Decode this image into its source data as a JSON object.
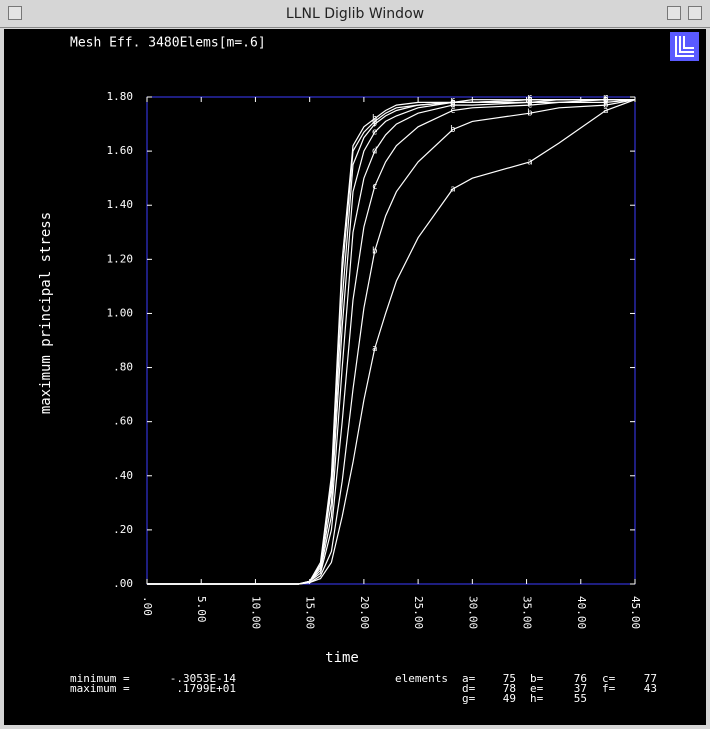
{
  "window_title": "LLNL Diglib Window",
  "chart_data": {
    "type": "line",
    "title": "Mesh Eff. 3480Elems[m=.6]",
    "x_label": "time",
    "y_label": "maximum principal stress",
    "x": [
      0,
      14,
      15,
      16,
      17,
      18,
      19,
      20,
      21,
      22,
      23,
      25,
      28.2,
      30,
      35.3,
      38,
      42.3,
      45
    ],
    "series": [
      {
        "name": "a",
        "color": "#ffffff",
        "values": [
          0,
          0,
          0.005,
          0.02,
          0.08,
          0.25,
          0.45,
          0.68,
          0.87,
          1.0,
          1.12,
          1.28,
          1.46,
          1.5,
          1.56,
          1.63,
          1.75,
          1.79
        ]
      },
      {
        "name": "b",
        "color": "#ffffff",
        "values": [
          0,
          0,
          0.005,
          0.03,
          0.12,
          0.38,
          0.72,
          1.02,
          1.23,
          1.36,
          1.45,
          1.56,
          1.68,
          1.71,
          1.74,
          1.76,
          1.77,
          1.79
        ]
      },
      {
        "name": "c",
        "color": "#ffffff",
        "values": [
          0,
          0,
          0.01,
          0.04,
          0.2,
          0.6,
          1.05,
          1.32,
          1.47,
          1.56,
          1.62,
          1.69,
          1.75,
          1.76,
          1.77,
          1.78,
          1.78,
          1.79
        ]
      },
      {
        "name": "d",
        "color": "#ffffff",
        "values": [
          0,
          0,
          0.01,
          0.05,
          0.25,
          0.8,
          1.3,
          1.5,
          1.6,
          1.66,
          1.7,
          1.74,
          1.77,
          1.77,
          1.78,
          1.78,
          1.79,
          1.79
        ]
      },
      {
        "name": "e",
        "color": "#ffffff",
        "values": [
          0,
          0,
          0.01,
          0.06,
          0.3,
          0.95,
          1.45,
          1.6,
          1.67,
          1.71,
          1.73,
          1.76,
          1.78,
          1.78,
          1.78,
          1.79,
          1.79,
          1.79
        ]
      },
      {
        "name": "f",
        "color": "#ffffff",
        "values": [
          0,
          0,
          0.01,
          0.07,
          0.35,
          1.05,
          1.55,
          1.65,
          1.7,
          1.73,
          1.75,
          1.77,
          1.78,
          1.78,
          1.79,
          1.79,
          1.79,
          1.79
        ]
      },
      {
        "name": "g",
        "color": "#ffffff",
        "values": [
          0,
          0,
          0.01,
          0.07,
          0.38,
          1.15,
          1.6,
          1.67,
          1.71,
          1.74,
          1.76,
          1.77,
          1.78,
          1.78,
          1.79,
          1.79,
          1.79,
          1.79
        ]
      },
      {
        "name": "h",
        "color": "#ffffff",
        "values": [
          0,
          0,
          0.01,
          0.08,
          0.4,
          1.2,
          1.62,
          1.69,
          1.72,
          1.75,
          1.77,
          1.78,
          1.78,
          1.79,
          1.79,
          1.79,
          1.79,
          1.79
        ]
      }
    ],
    "xlim": [
      0,
      45
    ],
    "ylim": [
      0,
      1.8
    ],
    "xticks": [
      {
        "value": 0,
        "label": ".00"
      },
      {
        "value": 5,
        "label": "5.00"
      },
      {
        "value": 10,
        "label": "10.00"
      },
      {
        "value": 15,
        "label": "15.00"
      },
      {
        "value": 20,
        "label": "20.00"
      },
      {
        "value": 25,
        "label": "25.00"
      },
      {
        "value": 30,
        "label": "30.00"
      },
      {
        "value": 35,
        "label": "35.00"
      },
      {
        "value": 40,
        "label": "40.00"
      },
      {
        "value": 45,
        "label": "45.00"
      }
    ],
    "yticks": [
      {
        "value": 0,
        "label": ".00"
      },
      {
        "value": 0.2,
        "label": ".20"
      },
      {
        "value": 0.4,
        "label": ".40"
      },
      {
        "value": 0.6,
        "label": ".60"
      },
      {
        "value": 0.8,
        "label": ".80"
      },
      {
        "value": 1.0,
        "label": "1.00"
      },
      {
        "value": 1.2,
        "label": "1.20"
      },
      {
        "value": 1.4,
        "label": "1.40"
      },
      {
        "value": 1.6,
        "label": "1.60"
      },
      {
        "value": 1.8,
        "label": "1.80"
      }
    ],
    "frame_color": "#3c3cff"
  },
  "footer": {
    "minimum_label": "minimum =",
    "minimum_value": "-.3053E-14",
    "maximum_label": "maximum =",
    "maximum_value": ".1799E+01",
    "elements_label": "elements",
    "elements": [
      {
        "label": "a=",
        "value": 75
      },
      {
        "label": "b=",
        "value": 76
      },
      {
        "label": "c=",
        "value": 77
      },
      {
        "label": "d=",
        "value": 78
      },
      {
        "label": "e=",
        "value": 37
      },
      {
        "label": "f=",
        "value": 43
      },
      {
        "label": "g=",
        "value": 49
      },
      {
        "label": "h=",
        "value": 55
      }
    ]
  }
}
